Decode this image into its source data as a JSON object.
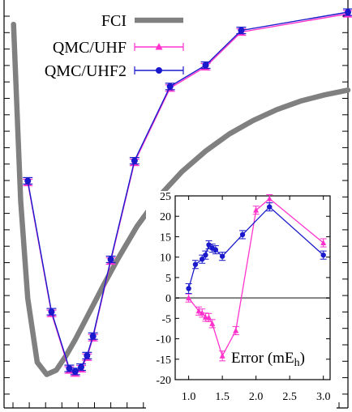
{
  "chart_data": [
    {
      "type": "line",
      "title": "",
      "xlabel": "",
      "ylabel": "",
      "grid": false,
      "legend_position": "top-center",
      "series": [
        {
          "name": "FCI",
          "color": "#808080",
          "x": [
            0.68,
            0.74,
            0.8,
            0.88,
            0.96,
            1.04,
            1.12,
            1.2,
            1.28,
            1.36,
            1.44,
            1.56,
            1.72,
            1.9,
            2.1,
            2.3,
            2.5,
            2.7,
            2.9,
            3.1,
            3.3,
            3.5
          ],
          "y": [
            14.3,
            11.4,
            9.8,
            8.75,
            8.55,
            8.62,
            8.85,
            9.12,
            9.42,
            9.72,
            10.02,
            10.45,
            10.98,
            11.46,
            11.88,
            12.22,
            12.5,
            12.72,
            12.9,
            13.04,
            13.14,
            13.22
          ]
        },
        {
          "name": "QMC/UHF",
          "color": "#ff33cc",
          "marker": "triangle",
          "x": [
            0.8,
            1.0,
            1.15,
            1.2,
            1.25,
            1.3,
            1.35,
            1.5,
            1.7,
            2.0,
            2.3,
            2.6,
            3.5
          ],
          "y": [
            11.73,
            9.58,
            8.65,
            8.6,
            8.67,
            8.86,
            9.18,
            10.44,
            12.06,
            13.28,
            13.63,
            14.2,
            14.5
          ]
        },
        {
          "name": "QMC/UHF2",
          "color": "#1a1acc",
          "marker": "circle",
          "x": [
            0.8,
            1.0,
            1.15,
            1.2,
            1.25,
            1.3,
            1.35,
            1.5,
            1.7,
            2.0,
            2.3,
            2.6,
            3.5
          ],
          "y": [
            11.73,
            9.58,
            8.65,
            8.6,
            8.67,
            8.86,
            9.18,
            10.44,
            12.06,
            13.28,
            13.63,
            14.2,
            14.5
          ]
        }
      ]
    },
    {
      "type": "line",
      "title": "",
      "xlabel": "",
      "ylabel": "",
      "annotation": "Error (mE",
      "annotation_sub": "h",
      "annotation_close": ")",
      "xlim": [
        0.8,
        3.1
      ],
      "ylim": [
        -20,
        25
      ],
      "xticks": [
        "1.0",
        "1.5",
        "2.0",
        "2.5",
        "3.0"
      ],
      "yticks": [
        "-20",
        "-15",
        "-10",
        "-5",
        "0",
        "5",
        "10",
        "15",
        "20",
        "25"
      ],
      "grid": false,
      "zero_line_color": "#808080",
      "series": [
        {
          "name": "QMC/UHF",
          "color": "#ff33cc",
          "marker": "triangle",
          "x": [
            1.0,
            1.15,
            1.2,
            1.25,
            1.3,
            1.35,
            1.5,
            1.7,
            2.0,
            2.2,
            3.0
          ],
          "y": [
            0.0,
            -3.2,
            -3.7,
            -4.7,
            -4.8,
            -6.3,
            -14.2,
            -8.0,
            21.5,
            24.3,
            13.5
          ],
          "err": [
            1.0,
            1.0,
            1.0,
            1.0,
            1.0,
            1.0,
            1.2,
            1.0,
            1.0,
            1.0,
            1.0
          ]
        },
        {
          "name": "QMC/UHF2",
          "color": "#1a1acc",
          "marker": "circle",
          "x": [
            1.0,
            1.1,
            1.2,
            1.25,
            1.3,
            1.35,
            1.4,
            1.5,
            1.8,
            2.2,
            3.0
          ],
          "y": [
            2.3,
            8.2,
            9.5,
            10.5,
            13.0,
            12.2,
            11.8,
            10.2,
            15.5,
            22.3,
            10.5
          ],
          "err": [
            1.2,
            1.0,
            1.0,
            1.0,
            1.0,
            1.0,
            1.0,
            1.0,
            1.0,
            1.0,
            1.0
          ]
        }
      ]
    }
  ]
}
